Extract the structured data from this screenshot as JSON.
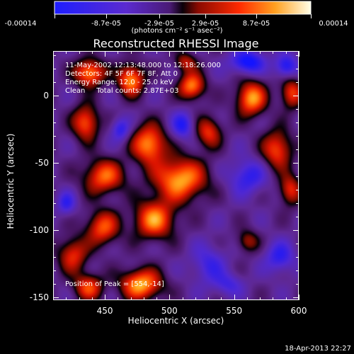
{
  "colorbar": {
    "ticks": [
      "-0.00014",
      "-8.7e-05",
      "-2.9e-05",
      "2.9e-05",
      "8.7e-05",
      "0.00014"
    ],
    "units": "(photons cm⁻² s⁻¹ asec⁻²)"
  },
  "title": "Reconstructed RHESSI Image",
  "annotation": [
    "11-May-2002 12:13:48.000 to 12:18:26.000",
    "Detectors: 4F 5F 6F 7F 8F, Att 0",
    "Energy Range: 12.0 - 25.0 keV",
    "Clean     Total counts: 2.87E+03"
  ],
  "peak_label": "Position of Peak = [554,-14]",
  "timestamp": "18-Apr-2013 22:27",
  "chart_data": {
    "type": "heatmap",
    "title": "Reconstructed RHESSI Image",
    "xlabel": "Heliocentric X (arcsec)",
    "ylabel": "Heliocentric Y (arcsec)",
    "xlim": [
      410,
      600
    ],
    "ylim": [
      -152,
      33
    ],
    "xticks": [
      450,
      500,
      550,
      600
    ],
    "yticks": [
      0,
      -50,
      -100,
      -150
    ],
    "xtick_labels": [
      "450",
      "500",
      "550",
      "600"
    ],
    "ytick_labels": [
      "0",
      "-50",
      "-100",
      "-150"
    ],
    "zlim": [
      -0.00014,
      0.00014
    ],
    "colormap": "red-temperature",
    "peak": {
      "x": 554,
      "y": -14
    },
    "features": [
      {
        "x": 438,
        "y": 17,
        "sx": 8,
        "sy": 7,
        "v": 1.0
      },
      {
        "x": 470,
        "y": 12,
        "sx": 7,
        "sy": 8,
        "v": 1.0
      },
      {
        "x": 517,
        "y": 7,
        "sx": 7,
        "sy": 7,
        "v": 0.95
      },
      {
        "x": 563,
        "y": -2,
        "sx": 8,
        "sy": 9,
        "v": 1.0
      },
      {
        "x": 594,
        "y": 2,
        "sx": 6,
        "sy": 8,
        "v": 0.75
      },
      {
        "x": 435,
        "y": -20,
        "sx": 7,
        "sy": 9,
        "v": 0.85
      },
      {
        "x": 484,
        "y": -36,
        "sx": 9,
        "sy": 10,
        "v": 1.0
      },
      {
        "x": 449,
        "y": -60,
        "sx": 11,
        "sy": 9,
        "v": 0.85
      },
      {
        "x": 508,
        "y": -62,
        "sx": 14,
        "sy": 11,
        "v": 1.05
      },
      {
        "x": 530,
        "y": -27,
        "sx": 7,
        "sy": 8,
        "v": 0.7
      },
      {
        "x": 583,
        "y": -40,
        "sx": 8,
        "sy": 10,
        "v": 0.8
      },
      {
        "x": 593,
        "y": -70,
        "sx": 6,
        "sy": 8,
        "v": 0.7
      },
      {
        "x": 488,
        "y": -92,
        "sx": 11,
        "sy": 10,
        "v": 0.95
      },
      {
        "x": 448,
        "y": -98,
        "sx": 9,
        "sy": 9,
        "v": 0.8
      },
      {
        "x": 425,
        "y": -118,
        "sx": 8,
        "sy": 9,
        "v": 0.7
      },
      {
        "x": 478,
        "y": -140,
        "sx": 11,
        "sy": 8,
        "v": 1.05
      },
      {
        "x": 437,
        "y": -142,
        "sx": 8,
        "sy": 7,
        "v": 0.75
      },
      {
        "x": 560,
        "y": -108,
        "sx": 6,
        "sy": 6,
        "v": 0.5
      },
      {
        "x": 512,
        "y": 25,
        "sx": 6,
        "sy": 5,
        "v": 0.55
      },
      {
        "x": 560,
        "y": 25,
        "sx": 9,
        "sy": 6,
        "v": -0.8
      },
      {
        "x": 590,
        "y": 22,
        "sx": 6,
        "sy": 6,
        "v": -0.7
      },
      {
        "x": 510,
        "y": -22,
        "sx": 6,
        "sy": 7,
        "v": -0.6
      },
      {
        "x": 462,
        "y": -25,
        "sx": 5,
        "sy": 6,
        "v": -0.55
      },
      {
        "x": 560,
        "y": -60,
        "sx": 10,
        "sy": 9,
        "v": -0.55
      },
      {
        "x": 585,
        "y": -120,
        "sx": 8,
        "sy": 8,
        "v": -0.55
      },
      {
        "x": 530,
        "y": -125,
        "sx": 9,
        "sy": 10,
        "v": -0.45
      },
      {
        "x": 420,
        "y": -80,
        "sx": 5,
        "sy": 6,
        "v": -0.5
      },
      {
        "x": 545,
        "y": -140,
        "sx": 8,
        "sy": 6,
        "v": -0.4
      }
    ]
  }
}
